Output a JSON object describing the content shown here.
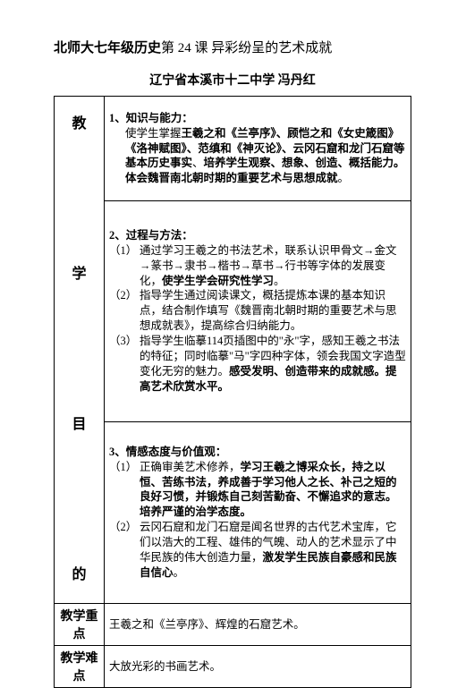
{
  "title_bold": "北师大七年级历史",
  "title_normal": "第 24 课  异彩纷呈的艺术成就",
  "subtitle": "辽宁省本溪市十二中学      冯丹红",
  "objectives_label": "教\n\n\n学\n\n\n目\n\n\n的",
  "section1_header": "1、知识与能力：",
  "section1_text1": "使学生掌握",
  "section1_text2": "王羲之和《兰亭序》、顾恺之和《女史箴图》《洛神赋图》、范缜和《神灭论》、云冈石窟和龙门石窟等基本历史事实",
  "section1_text3": "、",
  "section1_text4": "培养学生观察、想象、创造、概括能力。体会魏晋南北朝时期的重要艺术与思想成就",
  "section1_text5": "。",
  "section2_header": "2、过程与方法：",
  "section2_item1_num": "（1）",
  "section2_item1": "通过学习王羲之的书法艺术，联系认识甲骨文→金文→篆书→隶书→楷书→草书→行书等字体的发展变化，",
  "section2_item1_bold": "使学生学会研究性学习",
  "section2_item1_end": "。",
  "section2_item2_num": "（2）",
  "section2_item2": "指导学生通过阅读课文，概括提炼本课的基本知识点，结合制作填写《魏晋南北朝时期的重要艺术与思想成就表》，提高综合归纳能力。",
  "section2_item3_num": "（3）",
  "section2_item3": "指导学生临摹114页插图中的\"永\"字，感知王羲之书法的特征；同时临摹\"马\"字四种字体，领会我国文字造型变化无穷的魅力。",
  "section2_item3_bold": "感受发明、创造带来的成就感。提高艺术欣赏水平。",
  "section3_header": "3、情感态度与价值观：",
  "section3_item1_num": "（1）",
  "section3_item1": "正确审美艺术修养，",
  "section3_item1_bold": "学习王羲之博采众长，持之以恒、苦练书法，养成善于学习他人之长、补己之短的良好习惯，并锻炼自己刻苦勤奋、不懈追求的意志。培养严谨的治学态度。",
  "section3_item2_num": "（2）",
  "section3_item2": "云冈石窟和龙门石窟是闻名世界的古代艺术宝库，它们以浩大的工程、雄伟的气魄、动人的艺术显示了中华民族的伟大创造力量，",
  "section3_item2_bold": "激发学生民族自豪感和民族自信心",
  "section3_item2_end": "。",
  "row2_label": "教学重点",
  "row2_content": "王羲之和《兰亭序》、辉煌的石窟艺术。",
  "row3_label": "教学难点",
  "row3_content": "大放光彩的书画艺术。"
}
